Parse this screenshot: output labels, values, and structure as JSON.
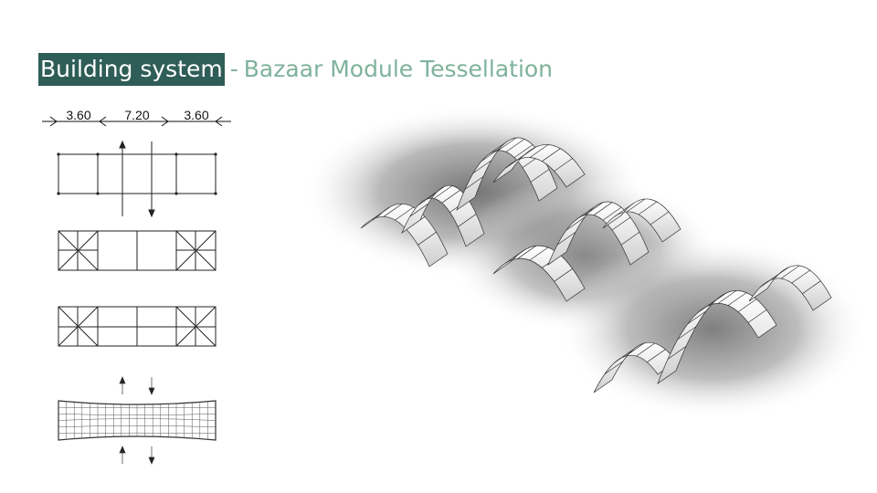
{
  "title": {
    "main": "Building system",
    "separator": "-",
    "subtitle": "Bazaar Module Tessellation"
  },
  "dimensions": [
    "3.60",
    "7.20",
    "3.60"
  ],
  "colors": {
    "title_bg": "#2f5d58",
    "title_text": "#ffffff",
    "subtitle": "#7fb29c",
    "line": "#222222"
  }
}
